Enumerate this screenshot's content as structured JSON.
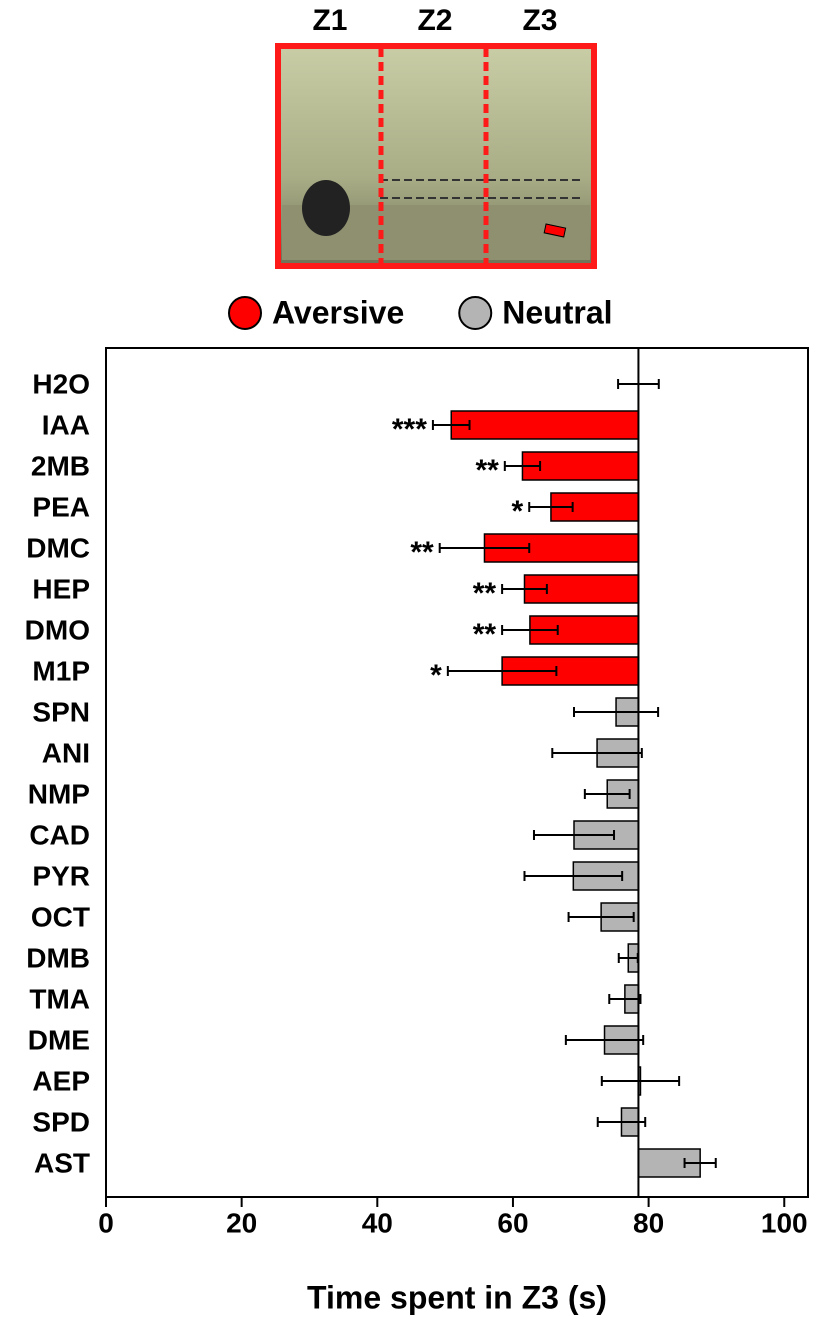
{
  "chart_data": {
    "type": "hbar",
    "zone_labels": [
      "Z1",
      "Z2",
      "Z3"
    ],
    "categories": [
      "H2O",
      "IAA",
      "2MB",
      "PEA",
      "DMC",
      "HEP",
      "DMO",
      "M1P",
      "SPN",
      "ANI",
      "NMP",
      "CAD",
      "PYR",
      "OCT",
      "DMB",
      "TMA",
      "DME",
      "AEP",
      "SPD",
      "AST"
    ],
    "series": [
      {
        "name": "Aversive",
        "color": "#ff0000",
        "values": [
          null,
          50.9,
          61.4,
          65.6,
          55.8,
          61.7,
          62.5,
          58.4,
          null,
          null,
          null,
          null,
          null,
          null,
          null,
          null,
          null,
          null,
          null,
          null
        ],
        "errors": [
          null,
          2.7,
          2.6,
          3.2,
          6.6,
          3.3,
          4.1,
          8,
          null,
          null,
          null,
          null,
          null,
          null,
          null,
          null,
          null,
          null,
          null,
          null
        ]
      },
      {
        "name": "Neutral",
        "color": "#b4b4b4",
        "values": [
          78.5,
          null,
          null,
          null,
          null,
          null,
          null,
          null,
          75.2,
          72.4,
          73.9,
          69.0,
          68.9,
          73.0,
          77.0,
          76.5,
          73.5,
          78.8,
          76.0,
          87.6
        ],
        "errors": [
          3,
          null,
          null,
          null,
          null,
          null,
          null,
          null,
          6.2,
          6.6,
          3.3,
          5.9,
          7.2,
          4.8,
          1.4,
          2.3,
          5.7,
          5.7,
          3.5,
          2.3
        ]
      }
    ],
    "significance": [
      null,
      "***",
      "**",
      "*",
      "**",
      "**",
      "**",
      "*",
      null,
      null,
      null,
      null,
      null,
      null,
      null,
      null,
      null,
      null,
      null,
      null
    ],
    "xlabel": "Time spent in Z3 (s)",
    "xlim": [
      0,
      103.5
    ],
    "xticks": [
      0,
      20,
      40,
      60,
      80,
      100
    ],
    "legend": "top"
  }
}
